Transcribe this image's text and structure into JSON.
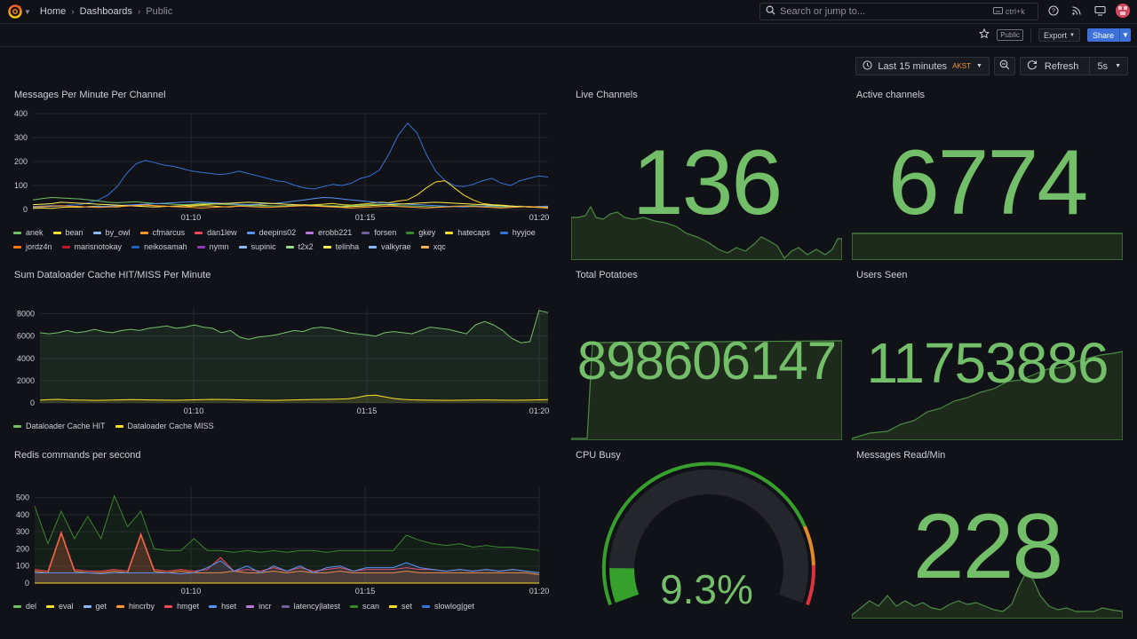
{
  "nav": {
    "breadcrumbs": [
      "Home",
      "Dashboards",
      "Public"
    ],
    "search_placeholder": "Search or jump to...",
    "search_shortcut": "ctrl+k"
  },
  "toolbar": {
    "public_badge": "Public",
    "export_label": "Export",
    "share_label": "Share"
  },
  "timebar": {
    "range_label": "Last 15 minutes",
    "timezone": "AKST",
    "refresh_label": "Refresh",
    "refresh_interval": "5s"
  },
  "colors": {
    "accent_green": "#73bf69",
    "share_blue": "#3d71d9",
    "timezone_orange": "#f0923d"
  },
  "panels": {
    "messages": {
      "title": "Messages Per Minute Per Channel",
      "legend": [
        {
          "name": "anek",
          "color": "#73bf69"
        },
        {
          "name": "bean",
          "color": "#fade2a"
        },
        {
          "name": "by_owl",
          "color": "#8ab8ff"
        },
        {
          "name": "cfmarcus",
          "color": "#ff9830"
        },
        {
          "name": "dan1lew",
          "color": "#f2495c"
        },
        {
          "name": "deepins02",
          "color": "#5794f2"
        },
        {
          "name": "erobb221",
          "color": "#b877d9"
        },
        {
          "name": "forsen",
          "color": "#705da0"
        },
        {
          "name": "gkey",
          "color": "#37872d"
        },
        {
          "name": "hatecaps",
          "color": "#fade2a"
        },
        {
          "name": "hyyjoe",
          "color": "#3274d9"
        },
        {
          "name": "jordz4n",
          "color": "#ff780a"
        },
        {
          "name": "marisnotokay",
          "color": "#c4162a"
        },
        {
          "name": "neikosamah",
          "color": "#1f60c4"
        },
        {
          "name": "nymn",
          "color": "#8f3bb8"
        },
        {
          "name": "supinic",
          "color": "#8ab8ff"
        },
        {
          "name": "t2x2",
          "color": "#96d98d"
        },
        {
          "name": "telinha",
          "color": "#ffee52"
        },
        {
          "name": "valkyrae",
          "color": "#8ab8ff"
        },
        {
          "name": "xqc",
          "color": "#ffb357"
        }
      ]
    },
    "cache": {
      "title": "Sum Dataloader Cache HIT/MISS Per Minute",
      "legend": [
        {
          "name": "Dataloader Cache HIT",
          "color": "#73bf69"
        },
        {
          "name": "Dataloader Cache MISS",
          "color": "#fade2a"
        }
      ]
    },
    "redis": {
      "title": "Redis commands per second",
      "legend": [
        {
          "name": "del",
          "color": "#73bf69"
        },
        {
          "name": "eval",
          "color": "#fade2a"
        },
        {
          "name": "get",
          "color": "#8ab8ff"
        },
        {
          "name": "hincrby",
          "color": "#ff9830"
        },
        {
          "name": "hmget",
          "color": "#f2495c"
        },
        {
          "name": "hset",
          "color": "#5794f2"
        },
        {
          "name": "incr",
          "color": "#b877d9"
        },
        {
          "name": "latency|latest",
          "color": "#705da0"
        },
        {
          "name": "scan",
          "color": "#37872d"
        },
        {
          "name": "set",
          "color": "#fade2a"
        },
        {
          "name": "slowlog|get",
          "color": "#3274d9"
        }
      ]
    },
    "live_channels": {
      "title": "Live Channels",
      "value": "136"
    },
    "active_channels": {
      "title": "Active channels",
      "value": "6774"
    },
    "total_potatoes": {
      "title": "Total Potatoes",
      "value": "898606147"
    },
    "users_seen": {
      "title": "Users Seen",
      "value": "11753886"
    },
    "cpu_busy": {
      "title": "CPU Busy",
      "value": "9.3%",
      "percent": 9.3
    },
    "messages_read": {
      "title": "Messages Read/Min",
      "value": "228"
    }
  },
  "chart_data": [
    {
      "type": "line",
      "title": "Messages Per Minute Per Channel",
      "x_ticks": [
        "01:10",
        "01:15",
        "01:20"
      ],
      "y_ticks": [
        0,
        100,
        200,
        300,
        400
      ],
      "ylim": [
        0,
        400
      ],
      "series": [
        {
          "name": "hyyjoe",
          "values": [
            8,
            10,
            12,
            14,
            18,
            20,
            28,
            40,
            60,
            95,
            150,
            190,
            205,
            195,
            185,
            180,
            170,
            160,
            155,
            150,
            145,
            150,
            160,
            150,
            140,
            130,
            120,
            115,
            100,
            90,
            85,
            95,
            105,
            100,
            110,
            130,
            140,
            165,
            230,
            310,
            360,
            320,
            230,
            160,
            120,
            100,
            95,
            105,
            120,
            130,
            110,
            100,
            120,
            130,
            140,
            135
          ]
        },
        {
          "name": "hatecaps",
          "values": [
            5,
            6,
            5,
            8,
            10,
            9,
            12,
            14,
            12,
            10,
            15,
            18,
            20,
            16,
            14,
            12,
            10,
            14,
            16,
            15,
            12,
            10,
            14,
            18,
            20,
            16,
            14,
            12,
            15,
            18,
            20,
            22,
            25,
            20,
            18,
            22,
            25,
            30,
            28,
            35,
            40,
            60,
            90,
            115,
            120,
            90,
            60,
            40,
            25,
            20,
            18,
            15,
            12,
            10,
            12,
            10
          ]
        },
        {
          "name": "anek",
          "values": [
            40,
            45,
            50,
            48,
            46,
            44,
            40,
            35,
            30,
            28,
            30,
            32,
            28,
            25,
            24,
            22,
            20,
            22,
            25,
            24,
            22,
            20,
            18,
            16,
            15,
            14,
            15,
            16,
            18,
            20,
            18,
            16,
            15,
            14,
            16,
            18,
            20,
            22,
            18,
            16,
            15,
            14,
            12,
            10,
            12,
            14,
            15,
            16,
            14,
            12,
            10,
            12,
            14,
            12,
            10,
            12
          ]
        },
        {
          "name": "deepins02",
          "values": [
            12,
            14,
            16,
            15,
            14,
            12,
            10,
            12,
            14,
            16,
            18,
            20,
            22,
            24,
            26,
            28,
            30,
            32,
            30,
            28,
            26,
            24,
            22,
            20,
            22,
            24,
            26,
            30,
            35,
            40,
            45,
            50,
            48,
            44,
            40,
            36,
            32,
            28,
            26,
            24,
            22,
            20,
            18,
            16,
            14,
            12,
            10,
            12,
            14,
            16,
            15,
            14,
            12,
            10,
            12,
            14
          ]
        },
        {
          "name": "telinha",
          "values": [
            20,
            22,
            24,
            30,
            28,
            26,
            24,
            22,
            20,
            18,
            16,
            14,
            12,
            10,
            12,
            14,
            16,
            18,
            20,
            22,
            24,
            26,
            28,
            30,
            28,
            26,
            24,
            22,
            20,
            18,
            16,
            14,
            12,
            10,
            12,
            14,
            16,
            18,
            20,
            22,
            24,
            26,
            28,
            30,
            28,
            26,
            24,
            22,
            20,
            18,
            16,
            14,
            12,
            10,
            8,
            6
          ]
        },
        {
          "name": "cfmarcus",
          "values": [
            10,
            12,
            14,
            16,
            14,
            12,
            10,
            8,
            10,
            12,
            14,
            16,
            18,
            16,
            14,
            12,
            10,
            8,
            6,
            8,
            10,
            12,
            14,
            12,
            10,
            8,
            10,
            12,
            14,
            16,
            14,
            12,
            10,
            8,
            6,
            8,
            10,
            12,
            14,
            12,
            10,
            8,
            6,
            8,
            10,
            12,
            14,
            12,
            10,
            8,
            6,
            8,
            10,
            12,
            10,
            8
          ]
        }
      ]
    },
    {
      "type": "area",
      "title": "Sum Dataloader Cache HIT/MISS Per Minute",
      "x_ticks": [
        "01:10",
        "01:15",
        "01:20"
      ],
      "y_ticks": [
        0,
        2000,
        4000,
        6000,
        8000
      ],
      "ylim": [
        0,
        8600
      ],
      "series": [
        {
          "name": "Dataloader Cache HIT",
          "values": [
            6300,
            6200,
            6300,
            6500,
            6300,
            6400,
            6600,
            6400,
            6300,
            6500,
            6600,
            6500,
            6700,
            6800,
            6900,
            6700,
            6800,
            7000,
            6800,
            6700,
            6300,
            6500,
            5900,
            5700,
            5900,
            6000,
            6100,
            6300,
            6500,
            6400,
            6700,
            6800,
            6700,
            6500,
            6300,
            6200,
            6100,
            6000,
            6300,
            6400,
            6300,
            6200,
            6500,
            6800,
            6700,
            6600,
            6400,
            6200,
            7000,
            7300,
            7000,
            6500,
            5800,
            5400,
            5500,
            8300,
            8100
          ]
        },
        {
          "name": "Dataloader Cache MISS",
          "values": [
            250,
            300,
            320,
            280,
            260,
            250,
            230,
            240,
            260,
            280,
            300,
            290,
            270,
            260,
            250,
            240,
            260,
            280,
            300,
            320,
            310,
            300,
            280,
            260,
            250,
            240,
            230,
            250,
            270,
            290,
            310,
            320,
            330,
            350,
            380,
            500,
            650,
            700,
            550,
            400,
            320,
            280,
            260,
            250,
            240,
            230,
            240,
            250,
            260,
            270,
            260,
            250,
            240,
            250,
            260,
            280,
            300
          ]
        }
      ]
    },
    {
      "type": "area",
      "title": "Redis commands per second",
      "x_ticks": [
        "01:10",
        "01:15",
        "01:20"
      ],
      "y_ticks": [
        0,
        100,
        200,
        300,
        400,
        500
      ],
      "ylim": [
        0,
        560
      ],
      "series": [
        {
          "name": "scan",
          "values": [
            450,
            230,
            420,
            260,
            390,
            260,
            510,
            330,
            420,
            200,
            190,
            190,
            260,
            190,
            190,
            180,
            190,
            180,
            190,
            180,
            190,
            190,
            180,
            190,
            190,
            190,
            190,
            190,
            280,
            250,
            230,
            220,
            230,
            210,
            220,
            210,
            210,
            200,
            190
          ]
        },
        {
          "name": "hincrby",
          "values": [
            70,
            60,
            290,
            70,
            60,
            60,
            70,
            60,
            280,
            70,
            60,
            70,
            60,
            60,
            60,
            70,
            60,
            60,
            70,
            60,
            70,
            60,
            60,
            70,
            60,
            60,
            60,
            60,
            70,
            60,
            60,
            60,
            60,
            60,
            60,
            60,
            60,
            60,
            50
          ]
        },
        {
          "name": "hmget",
          "values": [
            80,
            70,
            300,
            80,
            70,
            70,
            80,
            70,
            290,
            80,
            70,
            80,
            70,
            80,
            150,
            70,
            80,
            70,
            90,
            70,
            90,
            70,
            80,
            90,
            70,
            80,
            80,
            80,
            90,
            80,
            80,
            70,
            80,
            70,
            80,
            70,
            80,
            70,
            60
          ]
        },
        {
          "name": "hset",
          "values": [
            60,
            60,
            60,
            60,
            60,
            55,
            60,
            60,
            60,
            60,
            60,
            55,
            60,
            90,
            130,
            70,
            100,
            60,
            100,
            70,
            100,
            60,
            90,
            100,
            70,
            90,
            90,
            90,
            120,
            90,
            80,
            70,
            80,
            70,
            80,
            70,
            80,
            70,
            60
          ]
        },
        {
          "name": "eval",
          "values": [
            0,
            0,
            0,
            0,
            0,
            0,
            0,
            0,
            0,
            0,
            0,
            0,
            0,
            0,
            0,
            0,
            0,
            0,
            0,
            0,
            0,
            0,
            0,
            0,
            0,
            0,
            0,
            0,
            0,
            0,
            0,
            0,
            0,
            0,
            0,
            0,
            0,
            0,
            0
          ]
        }
      ]
    },
    {
      "type": "gauge",
      "title": "CPU Busy",
      "value": 9.3,
      "unit": "%",
      "range": [
        0,
        100
      ]
    }
  ]
}
